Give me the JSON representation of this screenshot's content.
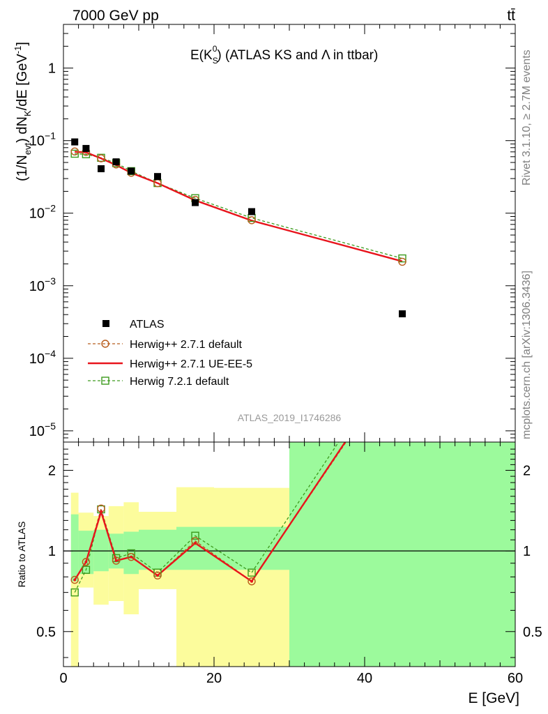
{
  "header": {
    "energy_label": "7000 GeV pp",
    "process_label": "tt̄"
  },
  "side_text": {
    "rivet": "Rivet 3.1.10, ≥ 2.7M events",
    "mcplots": "mcplots.cern.ch [arXiv:1306.3436]"
  },
  "analysis_label": "ATLAS_2019_I1746286",
  "chart_data": [
    {
      "type": "scatter",
      "title": "E(K_S^0) (ATLAS KS and Λ in ttbar)",
      "title_parts": {
        "main": "E(K",
        "sub": "S",
        "sup": "0",
        "rest": ") (ATLAS KS and Λ in ttbar)"
      },
      "ylabel": "(1/N_evt) dN_K/dE [GeV^-1]",
      "ylabel_parts": {
        "a": "(1/N",
        "sub1": "evt",
        "b": ") dN",
        "sub2": "K",
        "c": "/dE [GeV",
        "sup": "-1",
        "d": "]"
      },
      "y_scale": "log",
      "ylim": [
        7e-06,
        4.0
      ],
      "xlim": [
        0,
        60
      ],
      "y_tick_labels": [
        {
          "value": 1,
          "base": "1",
          "exp": ""
        },
        {
          "value": 0.1,
          "base": "10",
          "exp": "−1"
        },
        {
          "value": 0.01,
          "base": "10",
          "exp": "−2"
        },
        {
          "value": 0.001,
          "base": "10",
          "exp": "−3"
        },
        {
          "value": 0.0001,
          "base": "10",
          "exp": "−4"
        },
        {
          "value": 1e-05,
          "base": "10",
          "exp": "−5"
        }
      ],
      "x": [
        1.5,
        3.0,
        5.0,
        7.0,
        9.0,
        12.5,
        17.5,
        25.0,
        45.0
      ],
      "series": [
        {
          "name": "ATLAS",
          "color": "#000000",
          "marker": "filled-square",
          "values": [
            0.096,
            0.078,
            0.041,
            0.051,
            0.038,
            0.032,
            0.014,
            0.0105,
            0.00041
          ]
        },
        {
          "name": "Herwig++ 2.7.1 default",
          "color": "#b85c1c",
          "marker": "open-circle",
          "line": "dashed",
          "values": [
            0.071,
            0.07,
            0.057,
            0.047,
            0.036,
            0.026,
            0.0153,
            0.008,
            0.00214
          ]
        },
        {
          "name": "Herwig++ 2.7.1 UE-EE-5",
          "color": "#e8141c",
          "marker": "none",
          "line": "solid",
          "values": [
            0.07,
            0.069,
            0.057,
            0.046,
            0.036,
            0.026,
            0.015,
            0.0079,
            0.00217
          ]
        },
        {
          "name": "Herwig 7.2.1 default",
          "color": "#3c9a1c",
          "marker": "open-square",
          "line": "dashed",
          "values": [
            0.066,
            0.065,
            0.058,
            0.049,
            0.038,
            0.026,
            0.0161,
            0.0086,
            0.00238
          ]
        }
      ],
      "legend": "inside-lower-left"
    },
    {
      "type": "line",
      "ylabel": "Ratio to ATLAS",
      "xlabel": "E [GeV]",
      "y_scale": "log",
      "ylim": [
        0.37,
        2.55
      ],
      "xlim": [
        0,
        60
      ],
      "y_tick_labels": [
        {
          "value": 0.5,
          "label": "0.5"
        },
        {
          "value": 1,
          "label": "1"
        },
        {
          "value": 2,
          "label": "2"
        }
      ],
      "x_tick_labels": [
        {
          "value": 0,
          "label": "0"
        },
        {
          "value": 20,
          "label": "20"
        },
        {
          "value": 40,
          "label": "40"
        },
        {
          "value": 60,
          "label": "60"
        }
      ],
      "bin_edges": [
        1,
        2,
        4,
        6,
        8,
        10,
        15,
        20,
        30,
        60
      ],
      "band_stat": {
        "color": "#9cfa9c",
        "lower": [
          0.77,
          0.82,
          0.84,
          0.86,
          0.82,
          0.85,
          0.85,
          0.85,
          0.37
        ],
        "upper": [
          1.37,
          1.19,
          1.2,
          1.16,
          1.18,
          1.2,
          1.23,
          1.23,
          2.55
        ]
      },
      "band_total": {
        "color": "#fcfc9c",
        "lower": [
          0.37,
          0.73,
          0.63,
          0.65,
          0.58,
          0.72,
          0.37,
          0.37,
          0.37
        ],
        "upper": [
          1.65,
          1.39,
          1.35,
          1.47,
          1.52,
          1.4,
          1.73,
          1.72,
          2.55
        ]
      },
      "series": [
        {
          "name": "Herwig++ 2.7.1 default",
          "color": "#b85c1c",
          "values": [
            0.78,
            0.91,
            1.44,
            0.92,
            0.95,
            0.81,
            1.09,
            0.77,
            5.2
          ]
        },
        {
          "name": "Herwig++ 2.7.1 UE-EE-5",
          "color": "#e8141c",
          "values": [
            0.78,
            0.91,
            1.4,
            0.92,
            0.95,
            0.81,
            1.07,
            0.77,
            5.3
          ]
        },
        {
          "name": "Herwig 7.2.1 default",
          "color": "#3c9a1c",
          "values": [
            0.7,
            0.85,
            1.43,
            0.94,
            0.98,
            0.83,
            1.14,
            0.83,
            5.8
          ]
        }
      ]
    }
  ]
}
